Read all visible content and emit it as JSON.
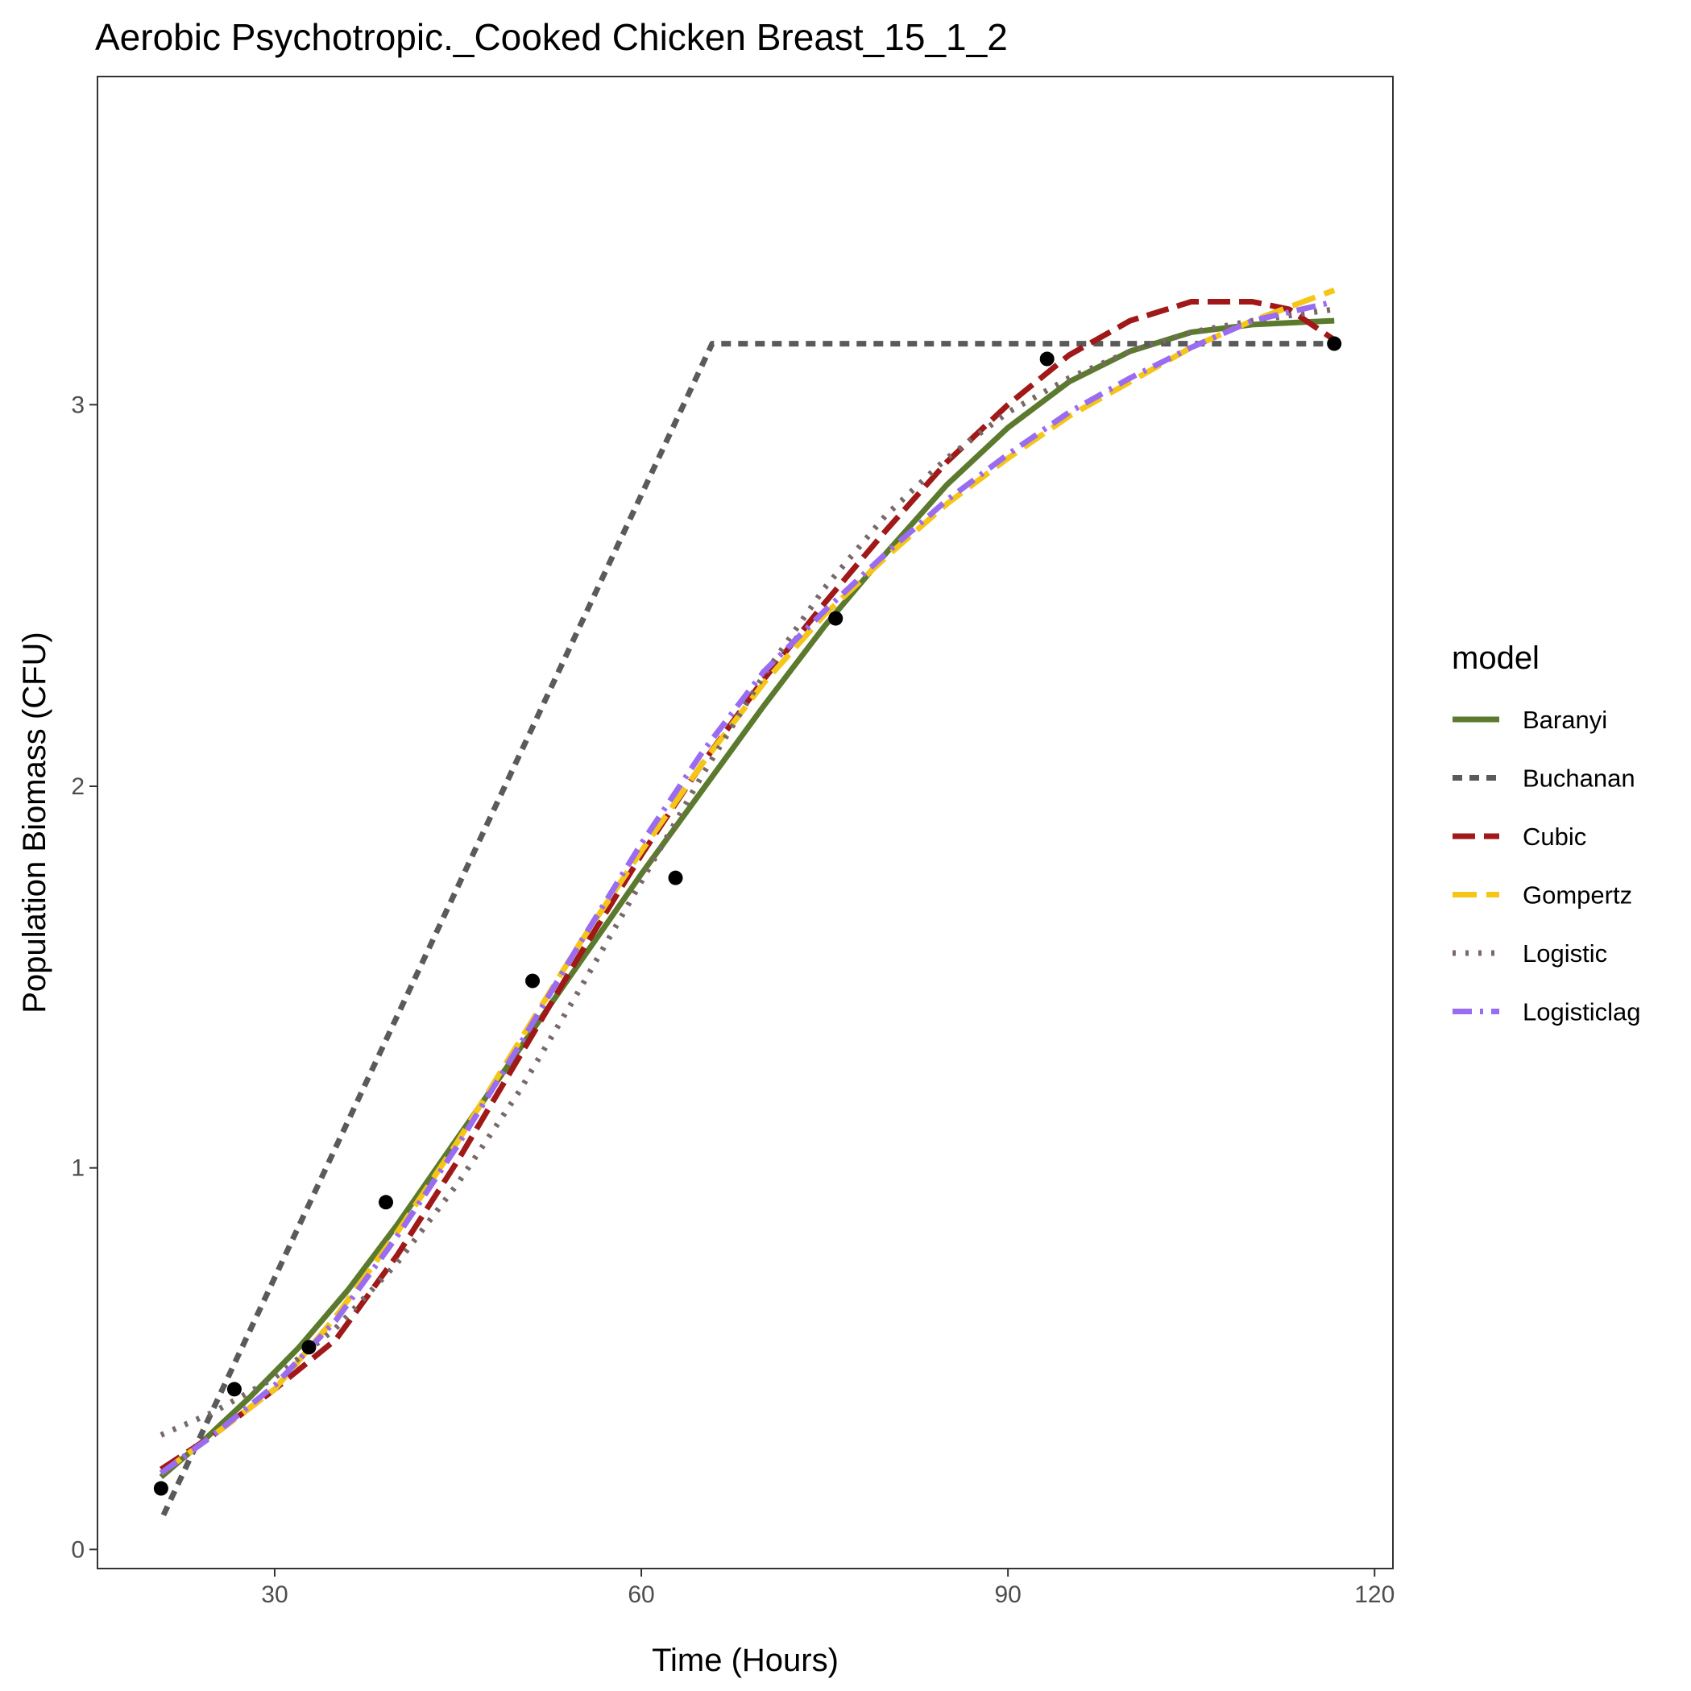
{
  "chart_data": {
    "type": "line",
    "title": "Aerobic Psychotropic._Cooked Chicken Breast_15_1_2",
    "xlabel": "Time (Hours)",
    "ylabel": "Population Biomass (CFU)",
    "xlim": [
      15.5,
      121.5
    ],
    "ylim": [
      -0.05,
      3.86
    ],
    "x_ticks": [
      30,
      60,
      90,
      120
    ],
    "y_ticks": [
      0,
      1,
      2,
      3
    ],
    "grid": false,
    "legend": {
      "title": "model",
      "position": "right"
    },
    "points": {
      "x": [
        20.7,
        26.7,
        32.8,
        39.1,
        51.1,
        62.8,
        75.9,
        93.2,
        116.7
      ],
      "y": [
        0.16,
        0.42,
        0.53,
        0.91,
        1.49,
        1.76,
        2.44,
        3.12,
        3.16
      ]
    },
    "series": [
      {
        "name": "Baranyi",
        "color": "#5b7a2e",
        "dash": "solid",
        "x": [
          20.7,
          24,
          28,
          32,
          36,
          40,
          45,
          50,
          55,
          60,
          65,
          70,
          75,
          80,
          85,
          90,
          95,
          100,
          105,
          110,
          116.7
        ],
        "y": [
          0.19,
          0.28,
          0.4,
          0.53,
          0.68,
          0.85,
          1.08,
          1.31,
          1.54,
          1.77,
          1.99,
          2.21,
          2.42,
          2.61,
          2.79,
          2.94,
          3.06,
          3.14,
          3.19,
          3.21,
          3.22
        ]
      },
      {
        "name": "Buchanan",
        "color": "#5a5a5a",
        "dash": "12,9",
        "x": [
          20.9,
          65.8,
          116.7
        ],
        "y": [
          0.09,
          3.16,
          3.16
        ]
      },
      {
        "name": "Cubic",
        "color": "#a01818",
        "dash": "28,11",
        "x": [
          20.7,
          25,
          30,
          35,
          40,
          45,
          50,
          55,
          60,
          65,
          70,
          75,
          80,
          85,
          90,
          95,
          100,
          105,
          110,
          113,
          116.7
        ],
        "y": [
          0.21,
          0.3,
          0.42,
          0.55,
          0.77,
          1.02,
          1.29,
          1.56,
          1.82,
          2.06,
          2.28,
          2.48,
          2.67,
          2.85,
          3.0,
          3.13,
          3.22,
          3.27,
          3.27,
          3.25,
          3.17
        ]
      },
      {
        "name": "Gompertz",
        "color": "#f5c518",
        "dash": "30,12",
        "x": [
          20.7,
          25,
          30,
          35,
          40,
          45,
          50,
          55,
          60,
          65,
          70,
          75,
          80,
          85,
          90,
          95,
          100,
          105,
          110,
          116.7
        ],
        "y": [
          0.2,
          0.3,
          0.42,
          0.61,
          0.83,
          1.07,
          1.33,
          1.59,
          1.83,
          2.06,
          2.27,
          2.45,
          2.6,
          2.74,
          2.86,
          2.97,
          3.06,
          3.15,
          3.22,
          3.3
        ]
      },
      {
        "name": "Logistic",
        "color": "#786868",
        "dash": "4,12",
        "x": [
          20.7,
          25,
          30,
          35,
          40,
          45,
          50,
          55,
          60,
          65,
          70,
          75,
          80,
          85,
          90,
          95,
          100,
          105,
          110,
          116.7
        ],
        "y": [
          0.3,
          0.36,
          0.45,
          0.58,
          0.75,
          0.96,
          1.2,
          1.47,
          1.75,
          2.03,
          2.29,
          2.52,
          2.71,
          2.86,
          2.98,
          3.07,
          3.14,
          3.19,
          3.22,
          3.25
        ]
      },
      {
        "name": "Logisticlag",
        "color": "#9a6cf0",
        "dash": "24,10,4,10",
        "x": [
          20.7,
          25,
          30,
          35,
          40,
          45,
          50,
          55,
          60,
          65,
          70,
          75,
          80,
          85,
          90,
          95,
          100,
          105,
          110,
          116.7
        ],
        "y": [
          0.2,
          0.3,
          0.43,
          0.6,
          0.82,
          1.06,
          1.32,
          1.59,
          1.85,
          2.09,
          2.3,
          2.46,
          2.61,
          2.75,
          2.87,
          2.98,
          3.07,
          3.15,
          3.22,
          3.27
        ]
      }
    ]
  }
}
